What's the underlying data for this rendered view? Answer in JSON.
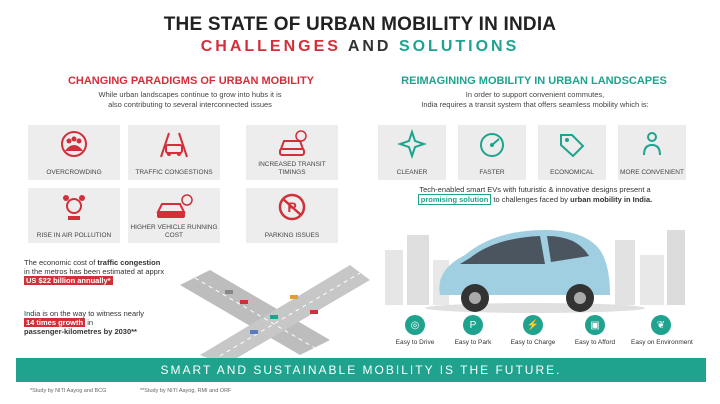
{
  "title": "THE STATE OF URBAN MOBILITY IN INDIA",
  "subtitle": {
    "w1": "CHALLENGES",
    "w2": "AND",
    "w3": "SOLUTIONS"
  },
  "left": {
    "heading": "CHANGING PARADIGMS OF URBAN MOBILITY",
    "intro_l1": "While urban landscapes continue to grow into hubs it is",
    "intro_l2": "also contributing to several interconnected issues",
    "tiles": [
      {
        "label": "OVERCROWDING",
        "icon": "crowd-icon"
      },
      {
        "label": "TRAFFIC CONGESTIONS",
        "icon": "traffic-icon"
      },
      {
        "label": "INCREASED TRANSIT TIMINGS",
        "icon": "car-clock-icon"
      },
      {
        "label": "RISE IN AIR POLLUTION",
        "icon": "pollution-icon"
      },
      {
        "label": "HIGHER VEHICLE RUNNING COST",
        "icon": "car-cost-icon"
      },
      {
        "label": "PARKING ISSUES",
        "icon": "no-parking-icon"
      }
    ],
    "note1_a": "The economic cost of ",
    "note1_b": "traffic congestion",
    "note1_c": "in the metros has been estimated at apprx",
    "note1_hl": "US $22 billion annually*",
    "note2_a": "India is on the way to witness nearly",
    "note2_hl": "14 times growth",
    "note2_c": " in",
    "note2_d": "passenger-kilometres by 2030**"
  },
  "right": {
    "heading": "REIMAGINING MOBILITY IN URBAN LANDSCAPES",
    "intro_l1": "In order to support convenient commutes,",
    "intro_l2": "India requires a transit system that offers seamless mobility which is:",
    "tiles": [
      {
        "label": "CLEANER",
        "icon": "sparkle-icon"
      },
      {
        "label": "FASTER",
        "icon": "speedometer-icon"
      },
      {
        "label": "ECONOMICAL",
        "icon": "price-tag-icon"
      },
      {
        "label": "MORE CONVENIENT",
        "icon": "person-icon"
      }
    ],
    "tech_a": "Tech-enabled smart EVs with futuristic & innovative designs present a",
    "tech_hl": "promising solution",
    "tech_b": " to challenges faced by ",
    "tech_c": "urban mobility in India.",
    "easy": [
      {
        "label": "Easy to Drive",
        "icon": "steering-icon"
      },
      {
        "label": "Easy to Park",
        "icon": "parking-icon"
      },
      {
        "label": "Easy to Charge",
        "icon": "charge-icon"
      },
      {
        "label": "Easy to Afford",
        "icon": "wallet-icon"
      },
      {
        "label": "Easy on Environment",
        "icon": "leaf-icon"
      }
    ]
  },
  "banner": "SMART AND SUSTAINABLE MOBILITY IS THE FUTURE.",
  "footnote1": "*Study by NITI Aayog and BCG",
  "footnote2": "**Study by NITI Aayog, RMI and ORF",
  "colors": {
    "red": "#d32f3a",
    "teal": "#1fa38f"
  }
}
